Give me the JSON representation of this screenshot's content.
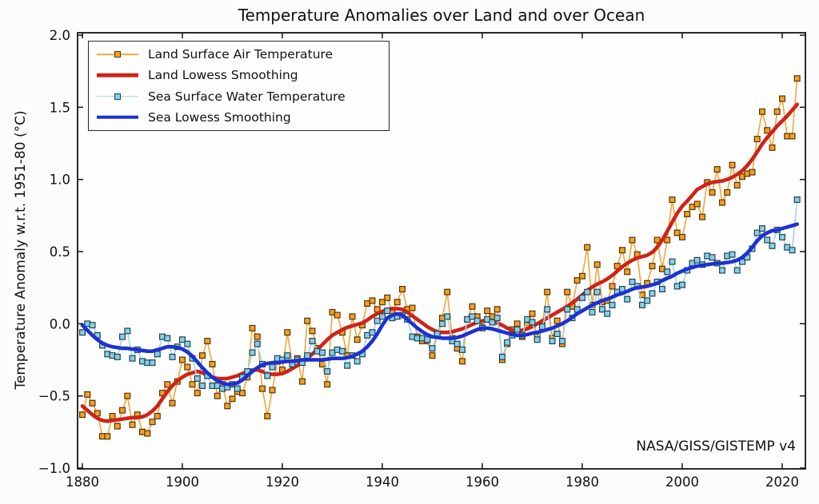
{
  "chart_data": {
    "type": "line",
    "title": "Temperature Anomalies over Land and over Ocean",
    "xlabel": "",
    "ylabel": "Temperature Anomaly w.r.t. 1951-80 (°C)",
    "annotation": "NASA/GISS/GISTEMP v4",
    "legend_position": "upper left",
    "grid": false,
    "axes": {
      "xlim": [
        1879.04,
        2024.64
      ],
      "ylim": [
        -1.0055,
        2.0166
      ],
      "xticks": [
        1880,
        1900,
        1920,
        1940,
        1960,
        1980,
        2000,
        2020
      ],
      "xtick_labels": [
        "1880",
        "1900",
        "1920",
        "1940",
        "1960",
        "1980",
        "2000",
        "2020"
      ],
      "yticks": [
        2.0,
        1.5,
        1.0,
        0.5,
        0.0,
        -0.5,
        -1.0
      ],
      "ytick_labels": [
        "2.0",
        "1.5",
        "1.0",
        "0.5",
        "0.0",
        "−0.5",
        "−1.0"
      ]
    },
    "x": [
      1880,
      1881,
      1882,
      1883,
      1884,
      1885,
      1886,
      1887,
      1888,
      1889,
      1890,
      1891,
      1892,
      1893,
      1894,
      1895,
      1896,
      1897,
      1898,
      1899,
      1900,
      1901,
      1902,
      1903,
      1904,
      1905,
      1906,
      1907,
      1908,
      1909,
      1910,
      1911,
      1912,
      1913,
      1914,
      1915,
      1916,
      1917,
      1918,
      1919,
      1920,
      1921,
      1922,
      1923,
      1924,
      1925,
      1926,
      1927,
      1928,
      1929,
      1930,
      1931,
      1932,
      1933,
      1934,
      1935,
      1936,
      1937,
      1938,
      1939,
      1940,
      1941,
      1942,
      1943,
      1944,
      1945,
      1946,
      1947,
      1948,
      1949,
      1950,
      1951,
      1952,
      1953,
      1954,
      1955,
      1956,
      1957,
      1958,
      1959,
      1960,
      1961,
      1962,
      1963,
      1964,
      1965,
      1966,
      1967,
      1968,
      1969,
      1970,
      1971,
      1972,
      1973,
      1974,
      1975,
      1976,
      1977,
      1978,
      1979,
      1980,
      1981,
      1982,
      1983,
      1984,
      1985,
      1986,
      1987,
      1988,
      1989,
      1990,
      1991,
      1992,
      1993,
      1994,
      1995,
      1996,
      1997,
      1998,
      1999,
      2000,
      2001,
      2002,
      2003,
      2004,
      2005,
      2006,
      2007,
      2008,
      2009,
      2010,
      2011,
      2012,
      2013,
      2014,
      2015,
      2016,
      2017,
      2018,
      2019,
      2020,
      2021,
      2022,
      2023
    ],
    "series": [
      {
        "name": "Land Surface Air Temperature",
        "kind": "scatter",
        "line_color": "#eda83d",
        "marker_color": "#f5a01e",
        "marker_edge": "#53350a",
        "values": [
          -0.63,
          -0.49,
          -0.55,
          -0.62,
          -0.78,
          -0.78,
          -0.64,
          -0.71,
          -0.6,
          -0.5,
          -0.7,
          -0.63,
          -0.75,
          -0.76,
          -0.68,
          -0.64,
          -0.48,
          -0.42,
          -0.55,
          -0.4,
          -0.25,
          -0.3,
          -0.42,
          -0.48,
          -0.22,
          -0.12,
          -0.28,
          -0.5,
          -0.42,
          -0.57,
          -0.52,
          -0.47,
          -0.48,
          -0.37,
          -0.03,
          -0.09,
          -0.45,
          -0.64,
          -0.46,
          -0.26,
          -0.32,
          -0.06,
          -0.28,
          -0.24,
          -0.4,
          0.02,
          -0.05,
          -0.17,
          -0.28,
          -0.42,
          0.08,
          0.06,
          -0.06,
          -0.22,
          0.05,
          -0.11,
          -0.01,
          0.14,
          0.16,
          0.1,
          0.15,
          0.18,
          0.08,
          0.15,
          0.24,
          0.1,
          0.11,
          -0.09,
          -0.12,
          -0.12,
          -0.22,
          -0.07,
          0.04,
          0.22,
          -0.1,
          -0.17,
          -0.26,
          0.03,
          0.12,
          0.05,
          -0.02,
          0.09,
          0.05,
          0.1,
          -0.25,
          -0.14,
          -0.04,
          0.0,
          -0.09,
          -0.01,
          0.07,
          -0.09,
          -0.01,
          0.22,
          -0.1,
          0.02,
          -0.14,
          0.22,
          0.12,
          0.3,
          0.33,
          0.53,
          0.13,
          0.41,
          0.15,
          0.16,
          0.26,
          0.4,
          0.51,
          0.36,
          0.58,
          0.48,
          0.2,
          0.28,
          0.4,
          0.58,
          0.38,
          0.58,
          0.86,
          0.63,
          0.6,
          0.76,
          0.81,
          0.83,
          0.74,
          0.98,
          0.91,
          1.07,
          0.84,
          0.91,
          1.1,
          0.96,
          1.02,
          1.04,
          1.05,
          1.28,
          1.47,
          1.34,
          1.22,
          1.47,
          1.56,
          1.3,
          1.3,
          1.7
        ]
      },
      {
        "name": "Land Lowess Smoothing",
        "kind": "lowess",
        "line_color": "#cf2318",
        "values": [
          -0.57,
          -0.6,
          -0.63,
          -0.655,
          -0.67,
          -0.675,
          -0.67,
          -0.665,
          -0.66,
          -0.655,
          -0.65,
          -0.65,
          -0.645,
          -0.63,
          -0.605,
          -0.57,
          -0.52,
          -0.47,
          -0.43,
          -0.395,
          -0.37,
          -0.35,
          -0.34,
          -0.33,
          -0.34,
          -0.355,
          -0.37,
          -0.38,
          -0.38,
          -0.38,
          -0.37,
          -0.36,
          -0.345,
          -0.33,
          -0.32,
          -0.32,
          -0.33,
          -0.345,
          -0.35,
          -0.35,
          -0.345,
          -0.33,
          -0.31,
          -0.29,
          -0.27,
          -0.24,
          -0.21,
          -0.18,
          -0.145,
          -0.11,
          -0.08,
          -0.06,
          -0.04,
          -0.025,
          -0.015,
          -0.005,
          0.005,
          0.025,
          0.05,
          0.07,
          0.085,
          0.1,
          0.105,
          0.105,
          0.1,
          0.08,
          0.055,
          0.03,
          0.005,
          -0.02,
          -0.04,
          -0.055,
          -0.06,
          -0.06,
          -0.055,
          -0.045,
          -0.035,
          -0.02,
          -0.005,
          0.01,
          0.02,
          0.02,
          0.015,
          0.005,
          -0.01,
          -0.03,
          -0.045,
          -0.05,
          -0.045,
          -0.035,
          -0.02,
          0.0,
          0.02,
          0.04,
          0.06,
          0.08,
          0.1,
          0.12,
          0.145,
          0.17,
          0.2,
          0.23,
          0.255,
          0.275,
          0.29,
          0.31,
          0.335,
          0.365,
          0.395,
          0.42,
          0.44,
          0.455,
          0.465,
          0.475,
          0.495,
          0.53,
          0.58,
          0.64,
          0.705,
          0.765,
          0.815,
          0.85,
          0.89,
          0.93,
          0.95,
          0.97,
          0.98,
          0.985,
          0.99,
          1.0,
          1.015,
          1.035,
          1.06,
          1.095,
          1.14,
          1.19,
          1.245,
          1.29,
          1.33,
          1.37,
          1.405,
          1.44,
          1.48,
          1.52
        ]
      },
      {
        "name": "Sea Surface Water Temperature",
        "kind": "scatter",
        "line_color": "#a5d5e8",
        "marker_color": "#85cfe9",
        "marker_edge": "#24434f",
        "values": [
          -0.06,
          0.0,
          -0.01,
          -0.08,
          -0.15,
          -0.21,
          -0.22,
          -0.23,
          -0.09,
          -0.05,
          -0.24,
          -0.18,
          -0.26,
          -0.27,
          -0.27,
          -0.21,
          -0.09,
          -0.1,
          -0.23,
          -0.16,
          -0.11,
          -0.14,
          -0.24,
          -0.38,
          -0.43,
          -0.36,
          -0.43,
          -0.43,
          -0.45,
          -0.44,
          -0.42,
          -0.45,
          -0.37,
          -0.33,
          -0.2,
          -0.14,
          -0.28,
          -0.36,
          -0.3,
          -0.24,
          -0.25,
          -0.22,
          -0.28,
          -0.25,
          -0.27,
          -0.22,
          -0.12,
          -0.19,
          -0.2,
          -0.33,
          -0.2,
          -0.18,
          -0.19,
          -0.29,
          -0.22,
          -0.26,
          -0.21,
          -0.08,
          -0.06,
          0.02,
          0.05,
          0.09,
          0.04,
          0.05,
          0.06,
          0.03,
          -0.09,
          -0.1,
          -0.1,
          -0.11,
          -0.17,
          -0.07,
          0.0,
          0.05,
          -0.12,
          -0.14,
          -0.18,
          0.03,
          0.05,
          0.02,
          -0.03,
          0.03,
          0.01,
          0.04,
          -0.23,
          -0.13,
          -0.08,
          -0.04,
          -0.08,
          0.03,
          0.01,
          -0.11,
          -0.02,
          0.1,
          -0.12,
          -0.07,
          -0.12,
          0.1,
          0.04,
          0.1,
          0.18,
          0.22,
          0.08,
          0.22,
          0.1,
          0.07,
          0.13,
          0.22,
          0.24,
          0.17,
          0.29,
          0.26,
          0.13,
          0.16,
          0.21,
          0.29,
          0.24,
          0.36,
          0.43,
          0.26,
          0.27,
          0.37,
          0.42,
          0.44,
          0.41,
          0.47,
          0.46,
          0.42,
          0.37,
          0.47,
          0.48,
          0.37,
          0.43,
          0.46,
          0.52,
          0.63,
          0.66,
          0.58,
          0.54,
          0.65,
          0.6,
          0.53,
          0.51,
          0.86
        ]
      },
      {
        "name": "Sea Lowess Smoothing",
        "kind": "lowess",
        "line_color": "#1c31d3",
        "values": [
          -0.01,
          -0.045,
          -0.08,
          -0.11,
          -0.135,
          -0.15,
          -0.16,
          -0.165,
          -0.17,
          -0.17,
          -0.175,
          -0.18,
          -0.185,
          -0.19,
          -0.19,
          -0.18,
          -0.17,
          -0.16,
          -0.16,
          -0.165,
          -0.175,
          -0.195,
          -0.225,
          -0.265,
          -0.305,
          -0.34,
          -0.37,
          -0.395,
          -0.41,
          -0.42,
          -0.42,
          -0.41,
          -0.39,
          -0.36,
          -0.33,
          -0.305,
          -0.285,
          -0.275,
          -0.27,
          -0.27,
          -0.265,
          -0.26,
          -0.26,
          -0.255,
          -0.25,
          -0.25,
          -0.25,
          -0.25,
          -0.25,
          -0.245,
          -0.24,
          -0.24,
          -0.24,
          -0.235,
          -0.225,
          -0.21,
          -0.19,
          -0.16,
          -0.12,
          -0.07,
          -0.01,
          0.04,
          0.06,
          0.07,
          0.06,
          0.03,
          0.0,
          -0.03,
          -0.055,
          -0.075,
          -0.09,
          -0.095,
          -0.1,
          -0.1,
          -0.1,
          -0.095,
          -0.085,
          -0.07,
          -0.055,
          -0.04,
          -0.03,
          -0.03,
          -0.035,
          -0.045,
          -0.055,
          -0.065,
          -0.075,
          -0.08,
          -0.08,
          -0.075,
          -0.065,
          -0.06,
          -0.05,
          -0.04,
          -0.03,
          -0.015,
          0.0,
          0.02,
          0.045,
          0.07,
          0.09,
          0.11,
          0.13,
          0.145,
          0.16,
          0.17,
          0.185,
          0.2,
          0.21,
          0.225,
          0.24,
          0.25,
          0.255,
          0.26,
          0.27,
          0.28,
          0.3,
          0.315,
          0.33,
          0.35,
          0.365,
          0.38,
          0.39,
          0.4,
          0.405,
          0.41,
          0.415,
          0.42,
          0.42,
          0.425,
          0.43,
          0.44,
          0.46,
          0.49,
          0.53,
          0.575,
          0.61,
          0.63,
          0.645,
          0.65,
          0.66,
          0.67,
          0.68,
          0.69
        ]
      }
    ],
    "legend": [
      {
        "label": "Land Surface Air Temperature",
        "swatch": "marker-line",
        "line_color": "#eda83d",
        "marker_color": "#f5a01e",
        "marker_edge": "#53350a"
      },
      {
        "label": "Land Lowess Smoothing",
        "swatch": "thick-line",
        "line_color": "#cf2318"
      },
      {
        "label": "Sea Surface Water Temperature",
        "swatch": "marker-line",
        "line_color": "#a5d5e8",
        "marker_color": "#85cfe9",
        "marker_edge": "#24434f"
      },
      {
        "label": "Sea Lowess Smoothing",
        "swatch": "thick-line",
        "line_color": "#1c31d3"
      }
    ],
    "style": {
      "spine_color": "#141414",
      "plot_bg": "#fefefe",
      "tick_color": "#141414"
    }
  }
}
